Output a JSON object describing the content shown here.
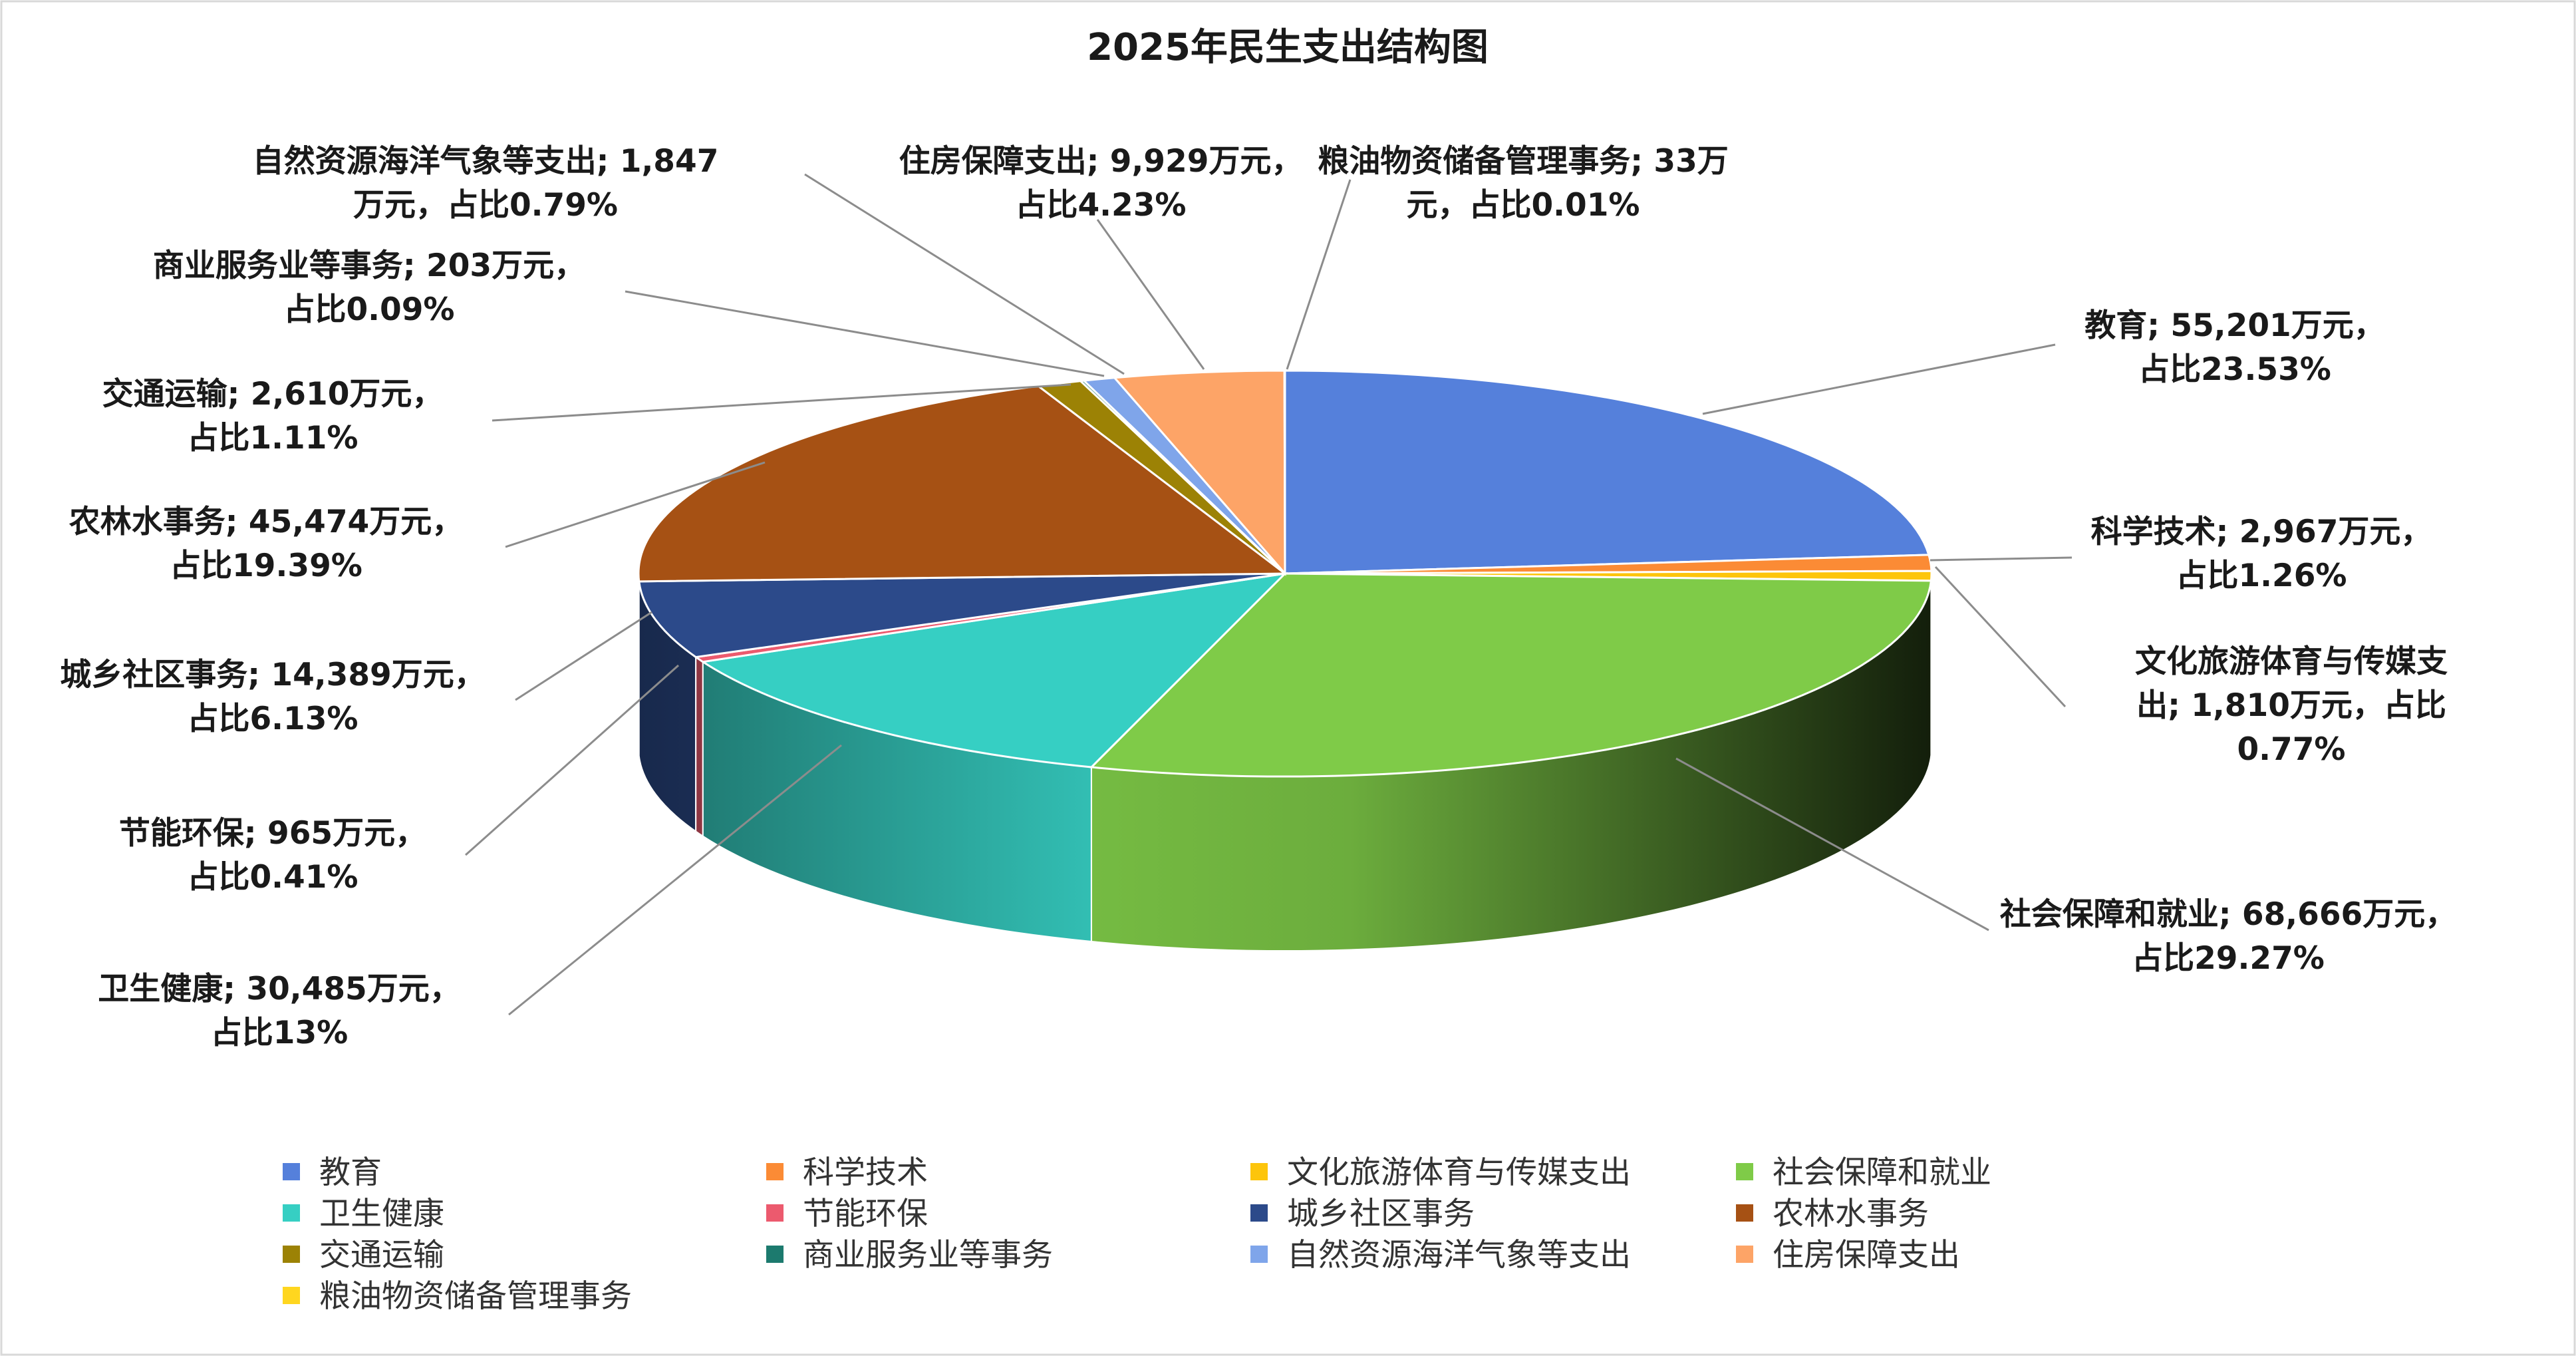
{
  "chart_data": {
    "type": "pie",
    "title": "2025年民生支出结构图",
    "unit": "万元",
    "slices": [
      {
        "name": "教育",
        "value": 55201,
        "percent": "23.53%",
        "color": "#5580DB",
        "label_lines": [
          "教育; 55,201万元，",
          "占比23.53%"
        ]
      },
      {
        "name": "科学技术",
        "value": 2967,
        "percent": "1.26%",
        "color": "#FB8B35",
        "label_lines": [
          "科学技术; 2,967万元，",
          "占比1.26%"
        ]
      },
      {
        "name": "文化旅游体育与传媒支出",
        "value": 1810,
        "percent": "0.77%",
        "color": "#FDC50B",
        "label_lines": [
          "文化旅游体育与传媒支",
          "出; 1,810万元，占比",
          "0.77%"
        ]
      },
      {
        "name": "社会保障和就业",
        "value": 68666,
        "percent": "29.27%",
        "color": "#7FCB48",
        "label_lines": [
          "社会保障和就业; 68,666万元，",
          "占比29.27%"
        ]
      },
      {
        "name": "卫生健康",
        "value": 30485,
        "percent": "13%",
        "color": "#36CFC3",
        "label_lines": [
          "卫生健康; 30,485万元，",
          "占比13%"
        ]
      },
      {
        "name": "节能环保",
        "value": 965,
        "percent": "0.41%",
        "color": "#EC5A6E",
        "label_lines": [
          "节能环保; 965万元，",
          "占比0.41%"
        ]
      },
      {
        "name": "城乡社区事务",
        "value": 14389,
        "percent": "6.13%",
        "color": "#2C4A8A",
        "label_lines": [
          "城乡社区事务; 14,389万元，",
          "占比6.13%"
        ]
      },
      {
        "name": "农林水事务",
        "value": 45474,
        "percent": "19.39%",
        "color": "#A65114",
        "label_lines": [
          "农林水事务; 45,474万元，",
          "占比19.39%"
        ]
      },
      {
        "name": "交通运输",
        "value": 2610,
        "percent": "1.11%",
        "color": "#9C8205",
        "label_lines": [
          "交通运输; 2,610万元，",
          "占比1.11%"
        ]
      },
      {
        "name": "商业服务业等事务",
        "value": 203,
        "percent": "0.09%",
        "color": "#1C7A6E",
        "label_lines": [
          "商业服务业等事务; 203万元，",
          "占比0.09%"
        ]
      },
      {
        "name": "自然资源海洋气象等支出",
        "value": 1847,
        "percent": "0.79%",
        "color": "#7FA5EA",
        "label_lines": [
          "自然资源海洋气象等支出; 1,847",
          "万元，占比0.79%"
        ]
      },
      {
        "name": "住房保障支出",
        "value": 9929,
        "percent": "4.23%",
        "color": "#FDA467",
        "label_lines": [
          "住房保障支出; 9,929万元，",
          "占比4.23%"
        ]
      },
      {
        "name": "粮油物资储备管理事务",
        "value": 33,
        "percent": "0.01%",
        "color": "#FFD61F",
        "label_lines": [
          "粮油物资储备管理事务; 33万",
          "元，占比0.01%"
        ]
      }
    ],
    "legend_position": "bottom"
  }
}
